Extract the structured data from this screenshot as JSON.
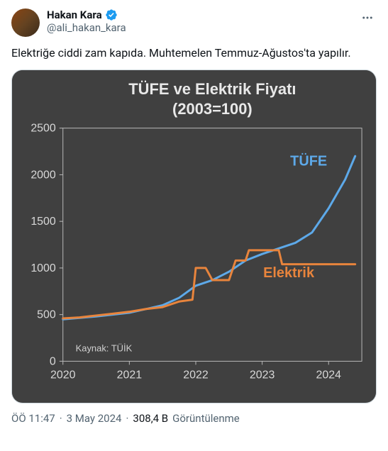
{
  "user": {
    "display_name": "Hakan Kara",
    "handle": "@ali_hakan_kara",
    "verified": true
  },
  "tweet": {
    "text": "Elektriğe ciddi zam kapıda. Muhtemelen Temmuz-Ağustos'ta yapılır."
  },
  "meta": {
    "time": "ÖÖ 11:47",
    "date": "3 May 2024",
    "views_count": "308,4 B",
    "views_label": "Görüntülenme"
  },
  "chart": {
    "type": "line",
    "title_line1": "TÜFE ve Elektrik Fiyatı",
    "title_line2": "(2003=100)",
    "title_fontsize": 22,
    "title_color": "#e8e8e8",
    "background_color": "#404040",
    "axis_color": "#b8b8b8",
    "grid_color": "#5a5a5a",
    "tick_fontsize": 16,
    "tick_color": "#d8d8d8",
    "xlim": [
      2020,
      2024.5
    ],
    "ylim": [
      0,
      2500
    ],
    "ytick_step": 500,
    "yticks": [
      0,
      500,
      1000,
      1500,
      2000,
      2500
    ],
    "xticks": [
      2020,
      2021,
      2022,
      2023,
      2024
    ],
    "series": [
      {
        "name": "TÜFE",
        "label": "TÜFE",
        "color": "#5da9e9",
        "line_width": 3,
        "label_x": 2023.7,
        "label_y": 2100,
        "label_fontsize": 20,
        "x": [
          2020.0,
          2020.25,
          2020.5,
          2020.75,
          2021.0,
          2021.25,
          2021.5,
          2021.75,
          2022.0,
          2022.25,
          2022.5,
          2022.75,
          2023.0,
          2023.25,
          2023.5,
          2023.75,
          2024.0,
          2024.25,
          2024.4
        ],
        "y": [
          450,
          465,
          480,
          500,
          520,
          560,
          600,
          680,
          810,
          870,
          960,
          1080,
          1150,
          1210,
          1270,
          1380,
          1640,
          1950,
          2200
        ]
      },
      {
        "name": "Elektrik",
        "label": "Elektrik",
        "color": "#e8843c",
        "line_width": 3,
        "label_x": 2023.4,
        "label_y": 900,
        "label_fontsize": 20,
        "x": [
          2020.0,
          2020.25,
          2020.5,
          2020.75,
          2021.0,
          2021.25,
          2021.5,
          2021.75,
          2021.95,
          2022.0,
          2022.15,
          2022.25,
          2022.5,
          2022.6,
          2022.75,
          2022.8,
          2023.25,
          2023.3,
          2024.4
        ],
        "y": [
          460,
          470,
          490,
          510,
          530,
          560,
          580,
          640,
          660,
          1000,
          1000,
          870,
          870,
          1080,
          1080,
          1190,
          1190,
          1040,
          1040
        ]
      }
    ],
    "source_label": "Kaynak: TÜİK",
    "source_fontsize": 13,
    "source_color": "#d0d0d0"
  }
}
